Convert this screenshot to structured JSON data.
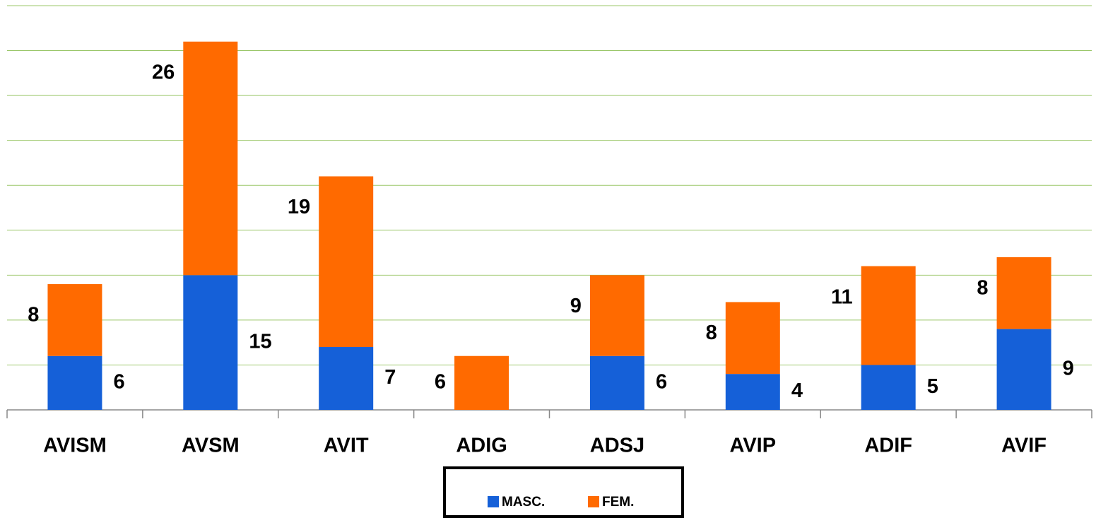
{
  "chart_data": {
    "type": "stacked_bar",
    "categories": [
      "AVISM",
      "AVSM",
      "AVIT",
      "ADIG",
      "ADSJ",
      "AVIP",
      "ADIF",
      "AVIF"
    ],
    "series": [
      {
        "name": "MASC.",
        "color": "#1560d8",
        "values": [
          6,
          15,
          7,
          null,
          6,
          4,
          5,
          9
        ]
      },
      {
        "name": "FEM.",
        "color": "#ff6a00",
        "values": [
          8,
          26,
          19,
          6,
          9,
          8,
          11,
          8
        ]
      }
    ],
    "ylim": [
      0,
      45
    ],
    "yticks": [
      0,
      5,
      10,
      15,
      20,
      25,
      30,
      35,
      40,
      45
    ],
    "grid": true,
    "legend": "bottom"
  }
}
